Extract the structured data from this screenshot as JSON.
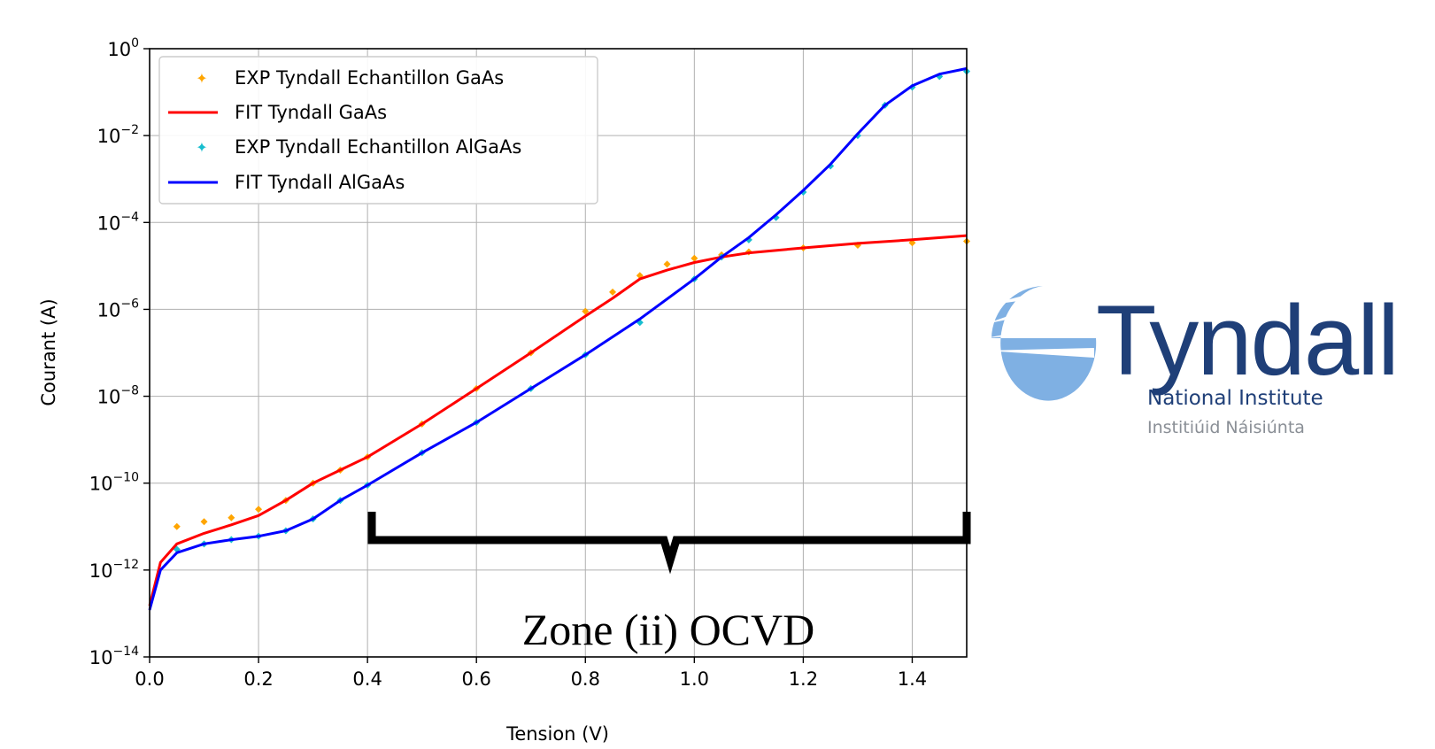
{
  "chart_data": {
    "type": "scatter",
    "xlabel": "Tension (V)",
    "ylabel": "Courant (A)",
    "xlim": [
      0.0,
      1.5
    ],
    "ylim_log10": [
      -14,
      0
    ],
    "y_scale": "log",
    "grid": true,
    "legend_position": "top-left",
    "x_ticks": [
      "0.0",
      "0.2",
      "0.4",
      "0.6",
      "0.8",
      "1.0",
      "1.2",
      "1.4"
    ],
    "y_ticks": [
      {
        "base": "10",
        "exp": "0"
      },
      {
        "base": "10",
        "exp": "−2"
      },
      {
        "base": "10",
        "exp": "−4"
      },
      {
        "base": "10",
        "exp": "−6"
      },
      {
        "base": "10",
        "exp": "−8"
      },
      {
        "base": "10",
        "exp": "−10"
      },
      {
        "base": "10",
        "exp": "−12"
      },
      {
        "base": "10",
        "exp": "−14"
      }
    ],
    "series": [
      {
        "name": "EXP Tyndall Echantillon GaAs",
        "kind": "scatter",
        "color": "#ffa500",
        "points": [
          [
            0.05,
            1e-11
          ],
          [
            0.1,
            1.3e-11
          ],
          [
            0.15,
            1.6e-11
          ],
          [
            0.2,
            2.5e-11
          ],
          [
            0.25,
            4e-11
          ],
          [
            0.3,
            1e-10
          ],
          [
            0.35,
            2e-10
          ],
          [
            0.4,
            4e-10
          ],
          [
            0.5,
            2.3e-09
          ],
          [
            0.6,
            1.5e-08
          ],
          [
            0.7,
            1e-07
          ],
          [
            0.8,
            9e-07
          ],
          [
            0.85,
            2.5e-06
          ],
          [
            0.9,
            6e-06
          ],
          [
            0.95,
            1.1e-05
          ],
          [
            1.0,
            1.5e-05
          ],
          [
            1.05,
            1.8e-05
          ],
          [
            1.1,
            2.1e-05
          ],
          [
            1.2,
            2.6e-05
          ],
          [
            1.3,
            3e-05
          ],
          [
            1.4,
            3.4e-05
          ],
          [
            1.5,
            3.7e-05
          ]
        ]
      },
      {
        "name": "FIT Tyndall GaAs",
        "kind": "line",
        "color": "#ff0000",
        "points": [
          [
            0.0,
            1.5e-13
          ],
          [
            0.02,
            1.5e-12
          ],
          [
            0.05,
            4e-12
          ],
          [
            0.1,
            7e-12
          ],
          [
            0.15,
            1.1e-11
          ],
          [
            0.2,
            1.8e-11
          ],
          [
            0.25,
            4e-11
          ],
          [
            0.3,
            1e-10
          ],
          [
            0.35,
            2e-10
          ],
          [
            0.4,
            4e-10
          ],
          [
            0.5,
            2.3e-09
          ],
          [
            0.6,
            1.5e-08
          ],
          [
            0.7,
            1e-07
          ],
          [
            0.8,
            7e-07
          ],
          [
            0.85,
            1.8e-06
          ],
          [
            0.9,
            5e-06
          ],
          [
            0.95,
            8e-06
          ],
          [
            1.0,
            1.2e-05
          ],
          [
            1.05,
            1.6e-05
          ],
          [
            1.1,
            2e-05
          ],
          [
            1.2,
            2.6e-05
          ],
          [
            1.3,
            3.3e-05
          ],
          [
            1.4,
            4e-05
          ],
          [
            1.5,
            5e-05
          ]
        ]
      },
      {
        "name": "EXP Tyndall Echantillon AlGaAs",
        "kind": "scatter",
        "color": "#17becf",
        "points": [
          [
            0.05,
            3e-12
          ],
          [
            0.1,
            4e-12
          ],
          [
            0.15,
            5e-12
          ],
          [
            0.2,
            6e-12
          ],
          [
            0.25,
            8e-12
          ],
          [
            0.3,
            1.5e-11
          ],
          [
            0.35,
            4e-11
          ],
          [
            0.4,
            9e-11
          ],
          [
            0.5,
            5e-10
          ],
          [
            0.6,
            2.5e-09
          ],
          [
            0.7,
            1.5e-08
          ],
          [
            0.8,
            9e-08
          ],
          [
            0.9,
            5e-07
          ],
          [
            1.0,
            5e-06
          ],
          [
            1.05,
            1.6e-05
          ],
          [
            1.1,
            4e-05
          ],
          [
            1.15,
            0.00013
          ],
          [
            1.2,
            0.0005
          ],
          [
            1.25,
            0.002
          ],
          [
            1.3,
            0.01
          ],
          [
            1.35,
            0.05
          ],
          [
            1.4,
            0.13
          ],
          [
            1.45,
            0.23
          ],
          [
            1.5,
            0.3
          ]
        ]
      },
      {
        "name": "FIT Tyndall AlGaAs",
        "kind": "line",
        "color": "#0000ff",
        "points": [
          [
            0.0,
            1.2e-13
          ],
          [
            0.02,
            1e-12
          ],
          [
            0.05,
            2.5e-12
          ],
          [
            0.1,
            4e-12
          ],
          [
            0.15,
            5e-12
          ],
          [
            0.2,
            6e-12
          ],
          [
            0.25,
            8e-12
          ],
          [
            0.3,
            1.5e-11
          ],
          [
            0.35,
            4e-11
          ],
          [
            0.4,
            9e-11
          ],
          [
            0.5,
            5e-10
          ],
          [
            0.6,
            2.5e-09
          ],
          [
            0.7,
            1.5e-08
          ],
          [
            0.8,
            9e-08
          ],
          [
            0.9,
            6e-07
          ],
          [
            1.0,
            5e-06
          ],
          [
            1.05,
            1.6e-05
          ],
          [
            1.1,
            4.5e-05
          ],
          [
            1.15,
            0.00015
          ],
          [
            1.2,
            0.00055
          ],
          [
            1.25,
            0.0022
          ],
          [
            1.3,
            0.011
          ],
          [
            1.35,
            0.05
          ],
          [
            1.4,
            0.14
          ],
          [
            1.45,
            0.26
          ],
          [
            1.5,
            0.35
          ]
        ]
      }
    ],
    "annotation": {
      "text": "Zone (ii) OCVD",
      "x_range": [
        0.4,
        1.5
      ]
    }
  },
  "logo": {
    "name": "Tyndall",
    "line1": "National Institute",
    "line2": "Institiúid Náisiúnta"
  },
  "colors": {
    "logo_dark": "#1f3f78",
    "logo_light": "#7fb0e3"
  }
}
